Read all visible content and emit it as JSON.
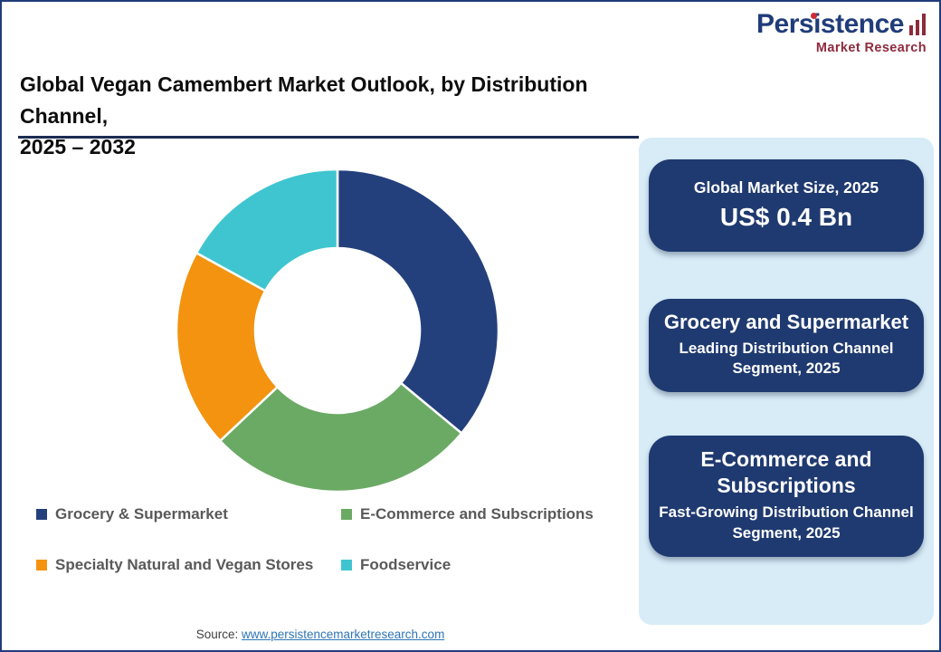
{
  "page": {
    "title_line1": "Global Vegan Camembert Market Outlook, by Distribution Channel,",
    "title_line2": "2025 – 2032"
  },
  "logo": {
    "name": "Persistence",
    "tagline": "Market Research"
  },
  "chart_data": {
    "type": "pie",
    "subtype": "donut",
    "title": "Global Vegan Camembert Market Outlook, by Distribution Channel, 2025 – 2032",
    "categories": [
      "Grocery & Supermarket",
      "E-Commerce and Subscriptions",
      "Specialty Natural and Vegan Stores",
      "Foodservice"
    ],
    "values": [
      36,
      27,
      20,
      17
    ],
    "unit": "% share (estimated from segment angles; no numeric labels shown)",
    "colors": [
      "#24407C",
      "#6BAA64",
      "#F3930F",
      "#3FC5CF"
    ],
    "start_angle_deg": 0,
    "direction": "clockwise",
    "legend_position": "bottom"
  },
  "legend": {
    "items": [
      {
        "label": "Grocery & Supermarket",
        "color": "#24407C"
      },
      {
        "label": "E-Commerce and Subscriptions",
        "color": "#6BAA64"
      },
      {
        "label": "Specialty Natural and Vegan Stores",
        "color": "#F3930F"
      },
      {
        "label": "Foodservice",
        "color": "#3FC5CF"
      }
    ]
  },
  "sidebar": {
    "cards": [
      {
        "title": "Global Market Size, 2025",
        "value": "US$ 0.4 Bn"
      },
      {
        "title": "Grocery and Supermarket",
        "subtitle": "Leading Distribution Channel Segment, 2025"
      },
      {
        "title": "E-Commerce and Subscriptions",
        "subtitle": "Fast-Growing Distribution Channel Segment, 2025"
      }
    ]
  },
  "footer": {
    "source_label": "Source:",
    "source_url": "www.persistencemarketresearch.com"
  },
  "colors": {
    "accent_navy": "#203C7A",
    "card_navy": "#1F3A70",
    "panel_blue": "#D7ECF7",
    "logo_maroon": "#8E2A3C",
    "logo_dot_red": "#CE2B37",
    "link_blue": "#2E75B6"
  }
}
